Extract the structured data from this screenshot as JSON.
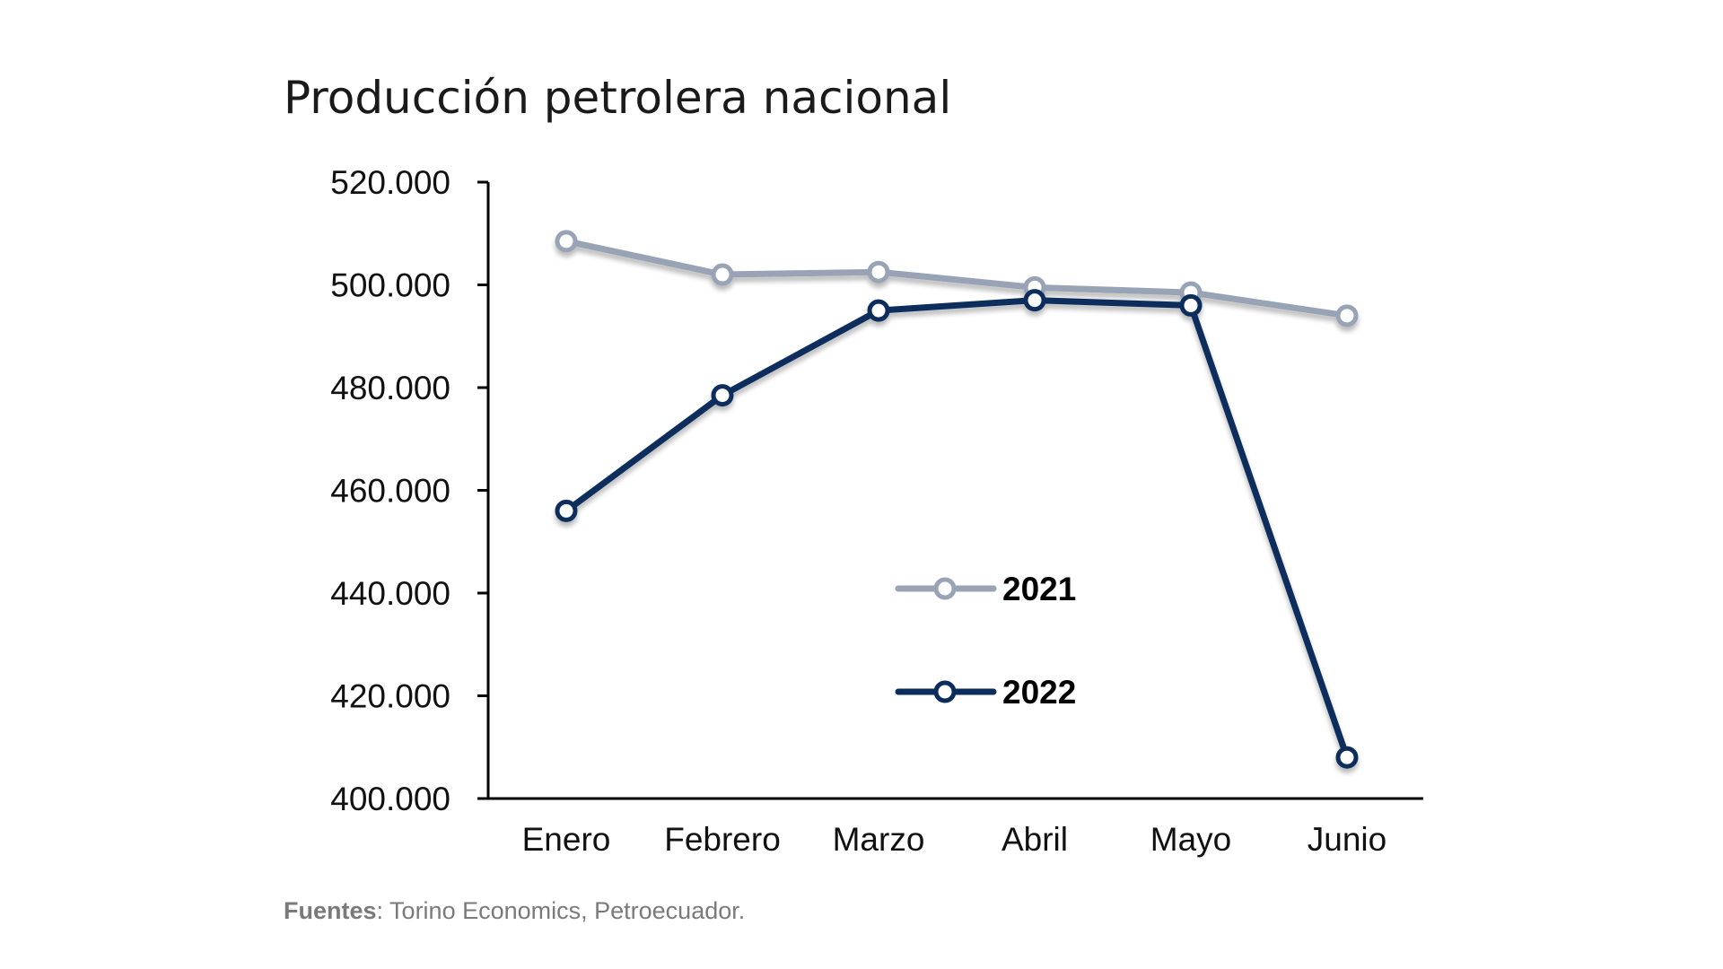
{
  "chart_data": {
    "type": "line",
    "title": "Producción petrolera nacional",
    "categories": [
      "Enero",
      "Febrero",
      "Marzo",
      "Abril",
      "Mayo",
      "Junio"
    ],
    "series": [
      {
        "name": "2021",
        "color": "#98a3b6",
        "values": [
          508500,
          502000,
          502500,
          499500,
          498500,
          494000
        ]
      },
      {
        "name": "2022",
        "color": "#0b2d5c",
        "values": [
          456000,
          478500,
          495000,
          497000,
          496000,
          408000
        ]
      }
    ],
    "ylim": [
      400000,
      520000
    ],
    "yticks": [
      {
        "value": 520000,
        "label": "520.000"
      },
      {
        "value": 500000,
        "label": "500.000"
      },
      {
        "value": 480000,
        "label": "480.000"
      },
      {
        "value": 460000,
        "label": "460.000"
      },
      {
        "value": 440000,
        "label": "440.000"
      },
      {
        "value": 420000,
        "label": "420.000"
      },
      {
        "value": 400000,
        "label": "400.000"
      }
    ],
    "xlabel": "",
    "ylabel": "",
    "grid": false,
    "legend_position": "center"
  },
  "source": {
    "label": "Fuentes",
    "text": ": Torino Economics, Petroecuador."
  }
}
